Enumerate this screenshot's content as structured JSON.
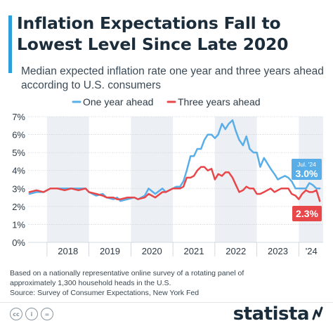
{
  "header": {
    "title": "Inflation Expectations Fall to Lowest Level Since Late 2020",
    "subtitle": "Median expected inflation rate one year and three years ahead according to U.S. consumers"
  },
  "footer": {
    "note": "Based on a nationally representative online survey of a rotating panel of approximately 1,300 household heads in the U.S.",
    "source": "Source: Survey of Consumer Expectations, New York Fed",
    "brand": "statista"
  },
  "license_icons": [
    "cc-icon",
    "info-icon",
    "equals-icon"
  ],
  "chart_data": {
    "type": "line",
    "legend_position": "top",
    "x_start": "2017-08",
    "x_end": "2024-07",
    "ylim": [
      0,
      7
    ],
    "y_ticks": [
      0,
      1,
      2,
      3,
      4,
      5,
      6,
      7
    ],
    "y_tick_labels": [
      "0%",
      "1%",
      "2%",
      "3%",
      "4%",
      "5%",
      "6%",
      "7%"
    ],
    "x_labels": [
      {
        "label": "2018",
        "at": 2018.5
      },
      {
        "label": "2019",
        "at": 2019.5
      },
      {
        "label": "2020",
        "at": 2020.5
      },
      {
        "label": "2021",
        "at": 2021.5
      },
      {
        "label": "2022",
        "at": 2022.5
      },
      {
        "label": "2023",
        "at": 2023.5
      },
      {
        "label": "'24",
        "at": 2024.3
      }
    ],
    "shaded_years": [
      2018,
      2020,
      2022,
      2024
    ],
    "series": [
      {
        "name": "One year ahead",
        "color": "#5aaee8",
        "points": [
          [
            2017.58,
            2.7
          ],
          [
            2017.75,
            2.8
          ],
          [
            2017.92,
            2.8
          ],
          [
            2018.08,
            3.0
          ],
          [
            2018.25,
            3.0
          ],
          [
            2018.42,
            3.0
          ],
          [
            2018.58,
            3.0
          ],
          [
            2018.75,
            3.0
          ],
          [
            2018.92,
            3.0
          ],
          [
            2019.0,
            2.8
          ],
          [
            2019.17,
            2.6
          ],
          [
            2019.33,
            2.7
          ],
          [
            2019.42,
            2.5
          ],
          [
            2019.58,
            2.4
          ],
          [
            2019.67,
            2.5
          ],
          [
            2019.75,
            2.3
          ],
          [
            2019.92,
            2.4
          ],
          [
            2020.08,
            2.5
          ],
          [
            2020.17,
            2.4
          ],
          [
            2020.33,
            2.6
          ],
          [
            2020.42,
            3.0
          ],
          [
            2020.58,
            2.7
          ],
          [
            2020.75,
            3.0
          ],
          [
            2020.83,
            2.8
          ],
          [
            2021.0,
            3.0
          ],
          [
            2021.08,
            3.1
          ],
          [
            2021.17,
            3.1
          ],
          [
            2021.25,
            3.4
          ],
          [
            2021.33,
            4.0
          ],
          [
            2021.42,
            4.8
          ],
          [
            2021.5,
            4.8
          ],
          [
            2021.58,
            5.2
          ],
          [
            2021.67,
            5.2
          ],
          [
            2021.75,
            5.7
          ],
          [
            2021.83,
            6.0
          ],
          [
            2021.92,
            6.0
          ],
          [
            2022.0,
            5.8
          ],
          [
            2022.08,
            6.0
          ],
          [
            2022.17,
            6.6
          ],
          [
            2022.25,
            6.3
          ],
          [
            2022.33,
            6.6
          ],
          [
            2022.42,
            6.8
          ],
          [
            2022.5,
            6.2
          ],
          [
            2022.58,
            5.7
          ],
          [
            2022.67,
            5.4
          ],
          [
            2022.75,
            5.9
          ],
          [
            2022.83,
            5.2
          ],
          [
            2022.92,
            5.0
          ],
          [
            2023.0,
            5.0
          ],
          [
            2023.08,
            4.2
          ],
          [
            2023.17,
            4.7
          ],
          [
            2023.25,
            4.4
          ],
          [
            2023.33,
            4.1
          ],
          [
            2023.42,
            3.8
          ],
          [
            2023.5,
            3.5
          ],
          [
            2023.58,
            3.6
          ],
          [
            2023.67,
            3.7
          ],
          [
            2023.75,
            3.6
          ],
          [
            2023.83,
            3.4
          ],
          [
            2023.92,
            3.0
          ],
          [
            2024.0,
            3.0
          ],
          [
            2024.08,
            3.0
          ],
          [
            2024.17,
            3.0
          ],
          [
            2024.25,
            3.3
          ],
          [
            2024.33,
            3.2
          ],
          [
            2024.42,
            3.0
          ],
          [
            2024.5,
            3.0
          ]
        ]
      },
      {
        "name": "Three years ahead",
        "color": "#e8474a",
        "points": [
          [
            2017.58,
            2.8
          ],
          [
            2017.75,
            2.9
          ],
          [
            2017.92,
            2.8
          ],
          [
            2018.08,
            3.0
          ],
          [
            2018.25,
            3.0
          ],
          [
            2018.42,
            2.9
          ],
          [
            2018.58,
            3.0
          ],
          [
            2018.75,
            2.9
          ],
          [
            2018.92,
            3.0
          ],
          [
            2019.0,
            2.8
          ],
          [
            2019.17,
            2.7
          ],
          [
            2019.33,
            2.6
          ],
          [
            2019.42,
            2.5
          ],
          [
            2019.58,
            2.5
          ],
          [
            2019.67,
            2.4
          ],
          [
            2019.75,
            2.4
          ],
          [
            2019.92,
            2.5
          ],
          [
            2020.08,
            2.5
          ],
          [
            2020.17,
            2.4
          ],
          [
            2020.33,
            2.5
          ],
          [
            2020.42,
            2.7
          ],
          [
            2020.58,
            2.5
          ],
          [
            2020.75,
            2.8
          ],
          [
            2020.83,
            2.8
          ],
          [
            2021.0,
            3.0
          ],
          [
            2021.08,
            3.0
          ],
          [
            2021.17,
            3.0
          ],
          [
            2021.25,
            3.1
          ],
          [
            2021.33,
            3.6
          ],
          [
            2021.42,
            3.6
          ],
          [
            2021.5,
            3.7
          ],
          [
            2021.58,
            4.0
          ],
          [
            2021.67,
            4.2
          ],
          [
            2021.75,
            4.2
          ],
          [
            2021.83,
            4.0
          ],
          [
            2021.92,
            4.1
          ],
          [
            2022.0,
            3.5
          ],
          [
            2022.08,
            3.8
          ],
          [
            2022.17,
            3.7
          ],
          [
            2022.25,
            3.9
          ],
          [
            2022.33,
            3.9
          ],
          [
            2022.42,
            3.6
          ],
          [
            2022.5,
            3.2
          ],
          [
            2022.58,
            2.8
          ],
          [
            2022.67,
            2.9
          ],
          [
            2022.75,
            3.1
          ],
          [
            2022.83,
            3.0
          ],
          [
            2022.92,
            3.0
          ],
          [
            2023.0,
            2.7
          ],
          [
            2023.08,
            2.7
          ],
          [
            2023.17,
            2.8
          ],
          [
            2023.25,
            2.9
          ],
          [
            2023.33,
            3.0
          ],
          [
            2023.42,
            2.8
          ],
          [
            2023.5,
            2.9
          ],
          [
            2023.58,
            3.0
          ],
          [
            2023.67,
            3.0
          ],
          [
            2023.75,
            3.0
          ],
          [
            2023.83,
            2.7
          ],
          [
            2023.92,
            2.6
          ],
          [
            2024.0,
            2.4
          ],
          [
            2024.08,
            2.7
          ],
          [
            2024.17,
            2.9
          ],
          [
            2024.25,
            2.8
          ],
          [
            2024.33,
            2.8
          ],
          [
            2024.42,
            2.9
          ],
          [
            2024.5,
            2.3
          ]
        ]
      }
    ],
    "callouts": [
      {
        "label": "Jul. '24",
        "value": "3.0%",
        "color": "#5aaee8",
        "series": 0
      },
      {
        "label": "",
        "value": "2.3%",
        "color": "#e8474a",
        "series": 1
      }
    ]
  }
}
